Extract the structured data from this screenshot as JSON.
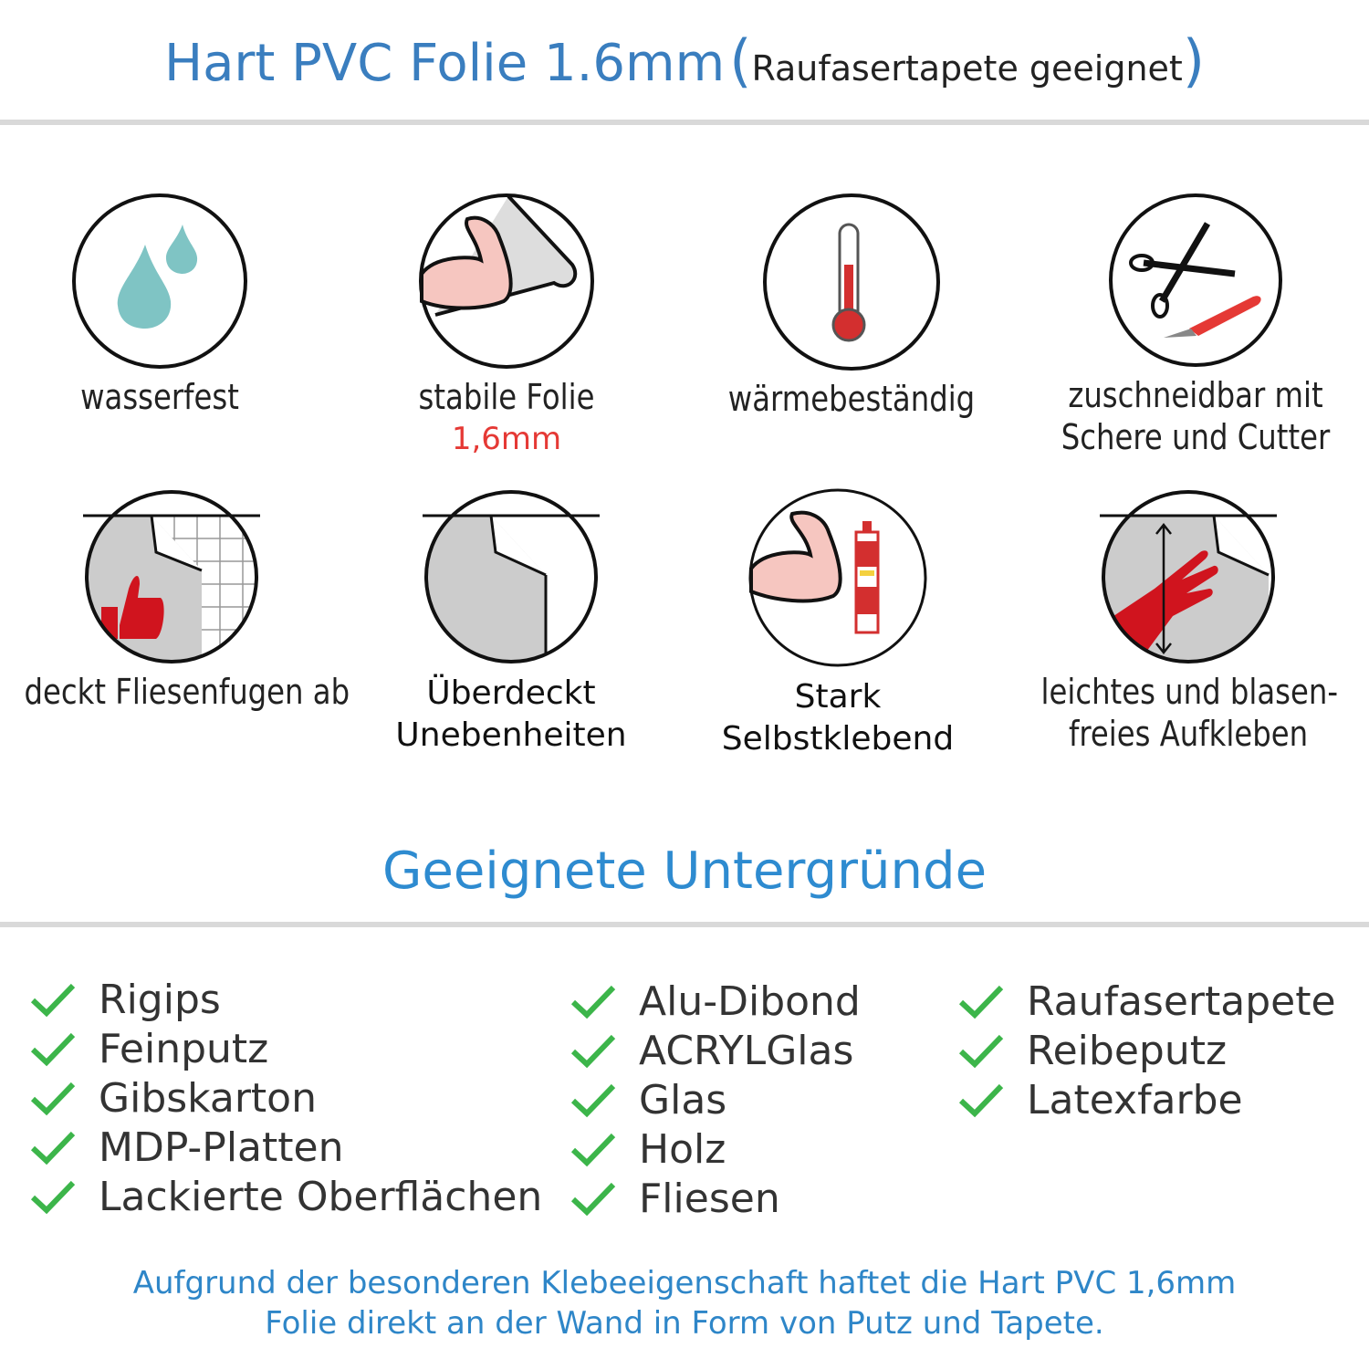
{
  "header": {
    "title": "Hart PVC Folie 1.6mm",
    "subtitle": "Raufasertapete geeignet",
    "open_paren": "(",
    "close_paren": ")"
  },
  "features": [
    {
      "icon": "water-drops-icon",
      "label": "wasserfest"
    },
    {
      "icon": "strong-arm-film-icon",
      "label": "stabile Folie",
      "sublabel": "1,6mm"
    },
    {
      "icon": "thermometer-icon",
      "label": "wärmebeständig"
    },
    {
      "icon": "scissors-cutter-icon",
      "label_lines": [
        "zuschneidbar mit",
        "Schere und Cutter"
      ]
    },
    {
      "icon": "thumbs-up-tiles-icon",
      "label": "deckt Fliesenfugen ab"
    },
    {
      "icon": "film-corner-icon",
      "label_lines": [
        "Überdeckt",
        "Unebenheiten"
      ]
    },
    {
      "icon": "strong-arm-glue-icon",
      "label_lines": [
        "Stark",
        "Selbstklebend"
      ]
    },
    {
      "icon": "hand-smoothing-icon",
      "label_lines": [
        "leichtes und blasen-",
        "freies Aufkleben"
      ]
    }
  ],
  "surfaces": {
    "title": "Geeignete Untergründe",
    "columns": [
      [
        "Rigips",
        "Feinputz",
        "Gibskarton",
        "MDP-Platten",
        "Lackierte Oberflächen"
      ],
      [
        "Alu-Dibond",
        "ACRYLGlas",
        "Glas",
        "Holz",
        "Fliesen"
      ],
      [
        "Raufasertapete",
        "Reibeputz",
        "Latexfarbe"
      ]
    ],
    "check_icon": "checkmark-icon",
    "check_color": "#3cb54a"
  },
  "footer": {
    "lines": [
      "Aufgrund der besonderen Klebeeigenschaft haftet die Hart PVC 1,6mm",
      "Folie direkt an der Wand in Form von Putz und Tapete."
    ]
  },
  "colors": {
    "accent": "#3a7ebf",
    "highlight": "#e53935"
  }
}
